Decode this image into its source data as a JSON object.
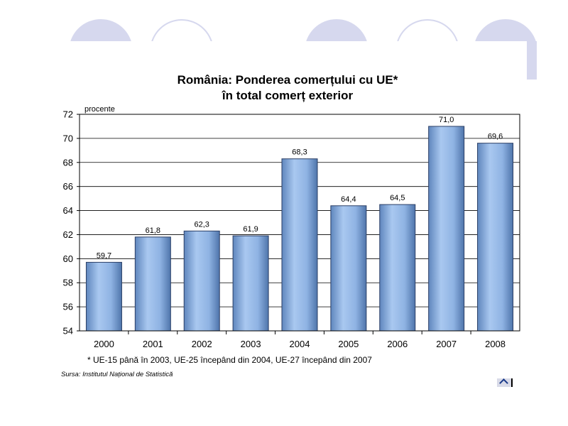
{
  "slide": {
    "title_line1": "România: Ponderea comerțului cu UE*",
    "title_line2": "în total comerț exterior",
    "footnote": "* UE-15 până în 2003, UE-25 începând din 2004, UE-27 începând din 2007",
    "source": "Sursa: Institutul Național de Statistică",
    "decor_color": "#d6d8ee"
  },
  "chart_data": {
    "type": "bar",
    "title": "România: Ponderea comerțului cu UE* în total comerț exterior",
    "ylabel": "procente",
    "xlabel": "",
    "categories": [
      "2000",
      "2001",
      "2002",
      "2003",
      "2004",
      "2005",
      "2006",
      "2007",
      "2008"
    ],
    "values": [
      59.7,
      61.8,
      62.3,
      61.9,
      68.3,
      64.4,
      64.5,
      71.0,
      69.6
    ],
    "value_labels": [
      "59,7",
      "61,8",
      "62,3",
      "61,9",
      "68,3",
      "64,4",
      "64,5",
      "71,0",
      "69,6"
    ],
    "ylim": [
      54,
      72
    ],
    "yticks": [
      "54",
      "56",
      "58",
      "60",
      "62",
      "64",
      "66",
      "68",
      "70",
      "72"
    ],
    "grid": true,
    "bar_color": "#8fb3e3"
  }
}
